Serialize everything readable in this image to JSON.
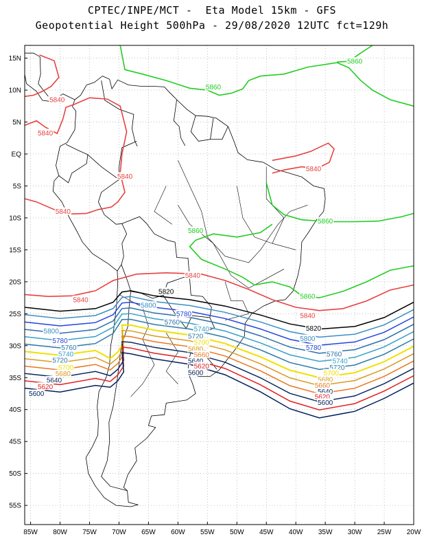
{
  "header": {
    "line1": "CPTEC/INPE/MCT -  Eta Model 15km - GFS",
    "line2": "Geopotential Height 500hPa - 29/08/2020 12UTC fct=129h"
  },
  "axes": {
    "lat_labels": [
      "15N",
      "10N",
      "5N",
      "EQ",
      "5S",
      "10S",
      "15S",
      "20S",
      "25S",
      "30S",
      "35S",
      "40S",
      "45S",
      "50S",
      "55S"
    ],
    "lon_labels": [
      "85W",
      "80W",
      "75W",
      "70W",
      "65W",
      "60W",
      "55W",
      "50W",
      "45W",
      "40W",
      "35W",
      "30W",
      "25W",
      "20W"
    ],
    "lat_values": [
      15,
      10,
      5,
      0,
      -5,
      -10,
      -15,
      -20,
      -25,
      -30,
      -35,
      -40,
      -45,
      -50,
      -55
    ],
    "lon_values": [
      -85,
      -80,
      -75,
      -70,
      -65,
      -60,
      -55,
      -50,
      -45,
      -40,
      -35,
      -30,
      -25,
      -20
    ],
    "lat_range": [
      -58,
      17
    ],
    "lon_range": [
      -86,
      -20
    ],
    "grid": "dotted"
  },
  "contours": {
    "colors": {
      "5860": "#22cc22",
      "5840": "#e84040",
      "5820": "#000000",
      "5800": "#3a8ec4",
      "5780": "#2244dd",
      "5760": "#2a6fa8",
      "5740": "#35a0c8",
      "5720": "#2a7aa8",
      "5700": "#f0e000",
      "5680": "#d89a20",
      "5660": "#e87820",
      "5640": "#0a2a60",
      "5620": "#e02020",
      "5600": "#001f5b"
    },
    "labels": [
      {
        "text": "5860",
        "lon": -30,
        "lat": 14.5,
        "color": "#22cc22"
      },
      {
        "text": "5860",
        "lon": -54,
        "lat": 10.5,
        "color": "#22cc22"
      },
      {
        "text": "5860",
        "lon": -35,
        "lat": -10.5,
        "color": "#22cc22"
      },
      {
        "text": "5860",
        "lon": -57,
        "lat": -12,
        "color": "#22cc22"
      },
      {
        "text": "5860",
        "lon": -38,
        "lat": -22.3,
        "color": "#22cc22"
      },
      {
        "text": "5840",
        "lon": -80.5,
        "lat": 8.5,
        "color": "#e84040"
      },
      {
        "text": "5840",
        "lon": -82.5,
        "lat": 3.3,
        "color": "#e84040"
      },
      {
        "text": "5840",
        "lon": -37,
        "lat": -2.3,
        "color": "#e84040"
      },
      {
        "text": "5840",
        "lon": -69,
        "lat": -3.5,
        "color": "#e84040"
      },
      {
        "text": "5840",
        "lon": -79.5,
        "lat": -9,
        "color": "#e84040"
      },
      {
        "text": "5840",
        "lon": -57.5,
        "lat": -19,
        "color": "#e84040"
      },
      {
        "text": "5840",
        "lon": -76.5,
        "lat": -22.8,
        "color": "#e84040"
      },
      {
        "text": "5840",
        "lon": -38,
        "lat": -25.3,
        "color": "#e84040"
      },
      {
        "text": "5820",
        "lon": -62,
        "lat": -21.5,
        "color": "#000000"
      },
      {
        "text": "5820",
        "lon": -37,
        "lat": -27.3,
        "color": "#000000"
      },
      {
        "text": "5800",
        "lon": -65,
        "lat": -23.7,
        "color": "#3a8ec4"
      },
      {
        "text": "5800",
        "lon": -81.5,
        "lat": -27.7,
        "color": "#3a8ec4"
      },
      {
        "text": "5800",
        "lon": -38,
        "lat": -28.9,
        "color": "#3a8ec4"
      },
      {
        "text": "5780",
        "lon": -59,
        "lat": -25,
        "color": "#2244dd"
      },
      {
        "text": "5780",
        "lon": -80,
        "lat": -29.2,
        "color": "#2244dd"
      },
      {
        "text": "5780",
        "lon": -37,
        "lat": -30.3,
        "color": "#2244dd"
      },
      {
        "text": "5760",
        "lon": -61,
        "lat": -26.3,
        "color": "#2a6fa8"
      },
      {
        "text": "5760",
        "lon": -78.5,
        "lat": -30.3,
        "color": "#2a6fa8"
      },
      {
        "text": "5760",
        "lon": -33.5,
        "lat": -31.3,
        "color": "#2a6fa8"
      },
      {
        "text": "5740",
        "lon": -56,
        "lat": -27.4,
        "color": "#35a0c8"
      },
      {
        "text": "5740",
        "lon": -79,
        "lat": -31.3,
        "color": "#35a0c8"
      },
      {
        "text": "5740",
        "lon": -32.5,
        "lat": -32.4,
        "color": "#35a0c8"
      },
      {
        "text": "5720",
        "lon": -57,
        "lat": -28.5,
        "color": "#2a7aa8"
      },
      {
        "text": "5720",
        "lon": -80,
        "lat": -32.3,
        "color": "#2a7aa8"
      },
      {
        "text": "5720",
        "lon": -33,
        "lat": -33.4,
        "color": "#2a7aa8"
      },
      {
        "text": "5700",
        "lon": -56,
        "lat": -29.5,
        "color": "#f0e000"
      },
      {
        "text": "5700",
        "lon": -79,
        "lat": -33.4,
        "color": "#f0e000"
      },
      {
        "text": "5700",
        "lon": -34,
        "lat": -34.3,
        "color": "#f0e000"
      },
      {
        "text": "5680",
        "lon": -57,
        "lat": -30.5,
        "color": "#d89a20"
      },
      {
        "text": "5680",
        "lon": -79.5,
        "lat": -34.4,
        "color": "#d89a20"
      },
      {
        "text": "5680",
        "lon": -35,
        "lat": -35.3,
        "color": "#d89a20"
      },
      {
        "text": "5660",
        "lon": -56,
        "lat": -31.4,
        "color": "#e87820"
      },
      {
        "text": "5660",
        "lon": -35.5,
        "lat": -36.2,
        "color": "#e87820"
      },
      {
        "text": "5640",
        "lon": -57,
        "lat": -32.4,
        "color": "#0a2a60"
      },
      {
        "text": "5640",
        "lon": -81,
        "lat": -35.4,
        "color": "#0a2a60"
      },
      {
        "text": "5640",
        "lon": -35,
        "lat": -37.2,
        "color": "#0a2a60"
      },
      {
        "text": "5620",
        "lon": -56,
        "lat": -33.2,
        "color": "#e02020"
      },
      {
        "text": "5620",
        "lon": -82.5,
        "lat": -36.4,
        "color": "#e02020"
      },
      {
        "text": "5620",
        "lon": -35.5,
        "lat": -38.0,
        "color": "#e02020"
      },
      {
        "text": "5600",
        "lon": -57,
        "lat": -34.2,
        "color": "#001f5b"
      },
      {
        "text": "5600",
        "lon": -84,
        "lat": -37.5,
        "color": "#001f5b"
      },
      {
        "text": "5600",
        "lon": -35,
        "lat": -38.9,
        "color": "#001f5b"
      }
    ]
  }
}
